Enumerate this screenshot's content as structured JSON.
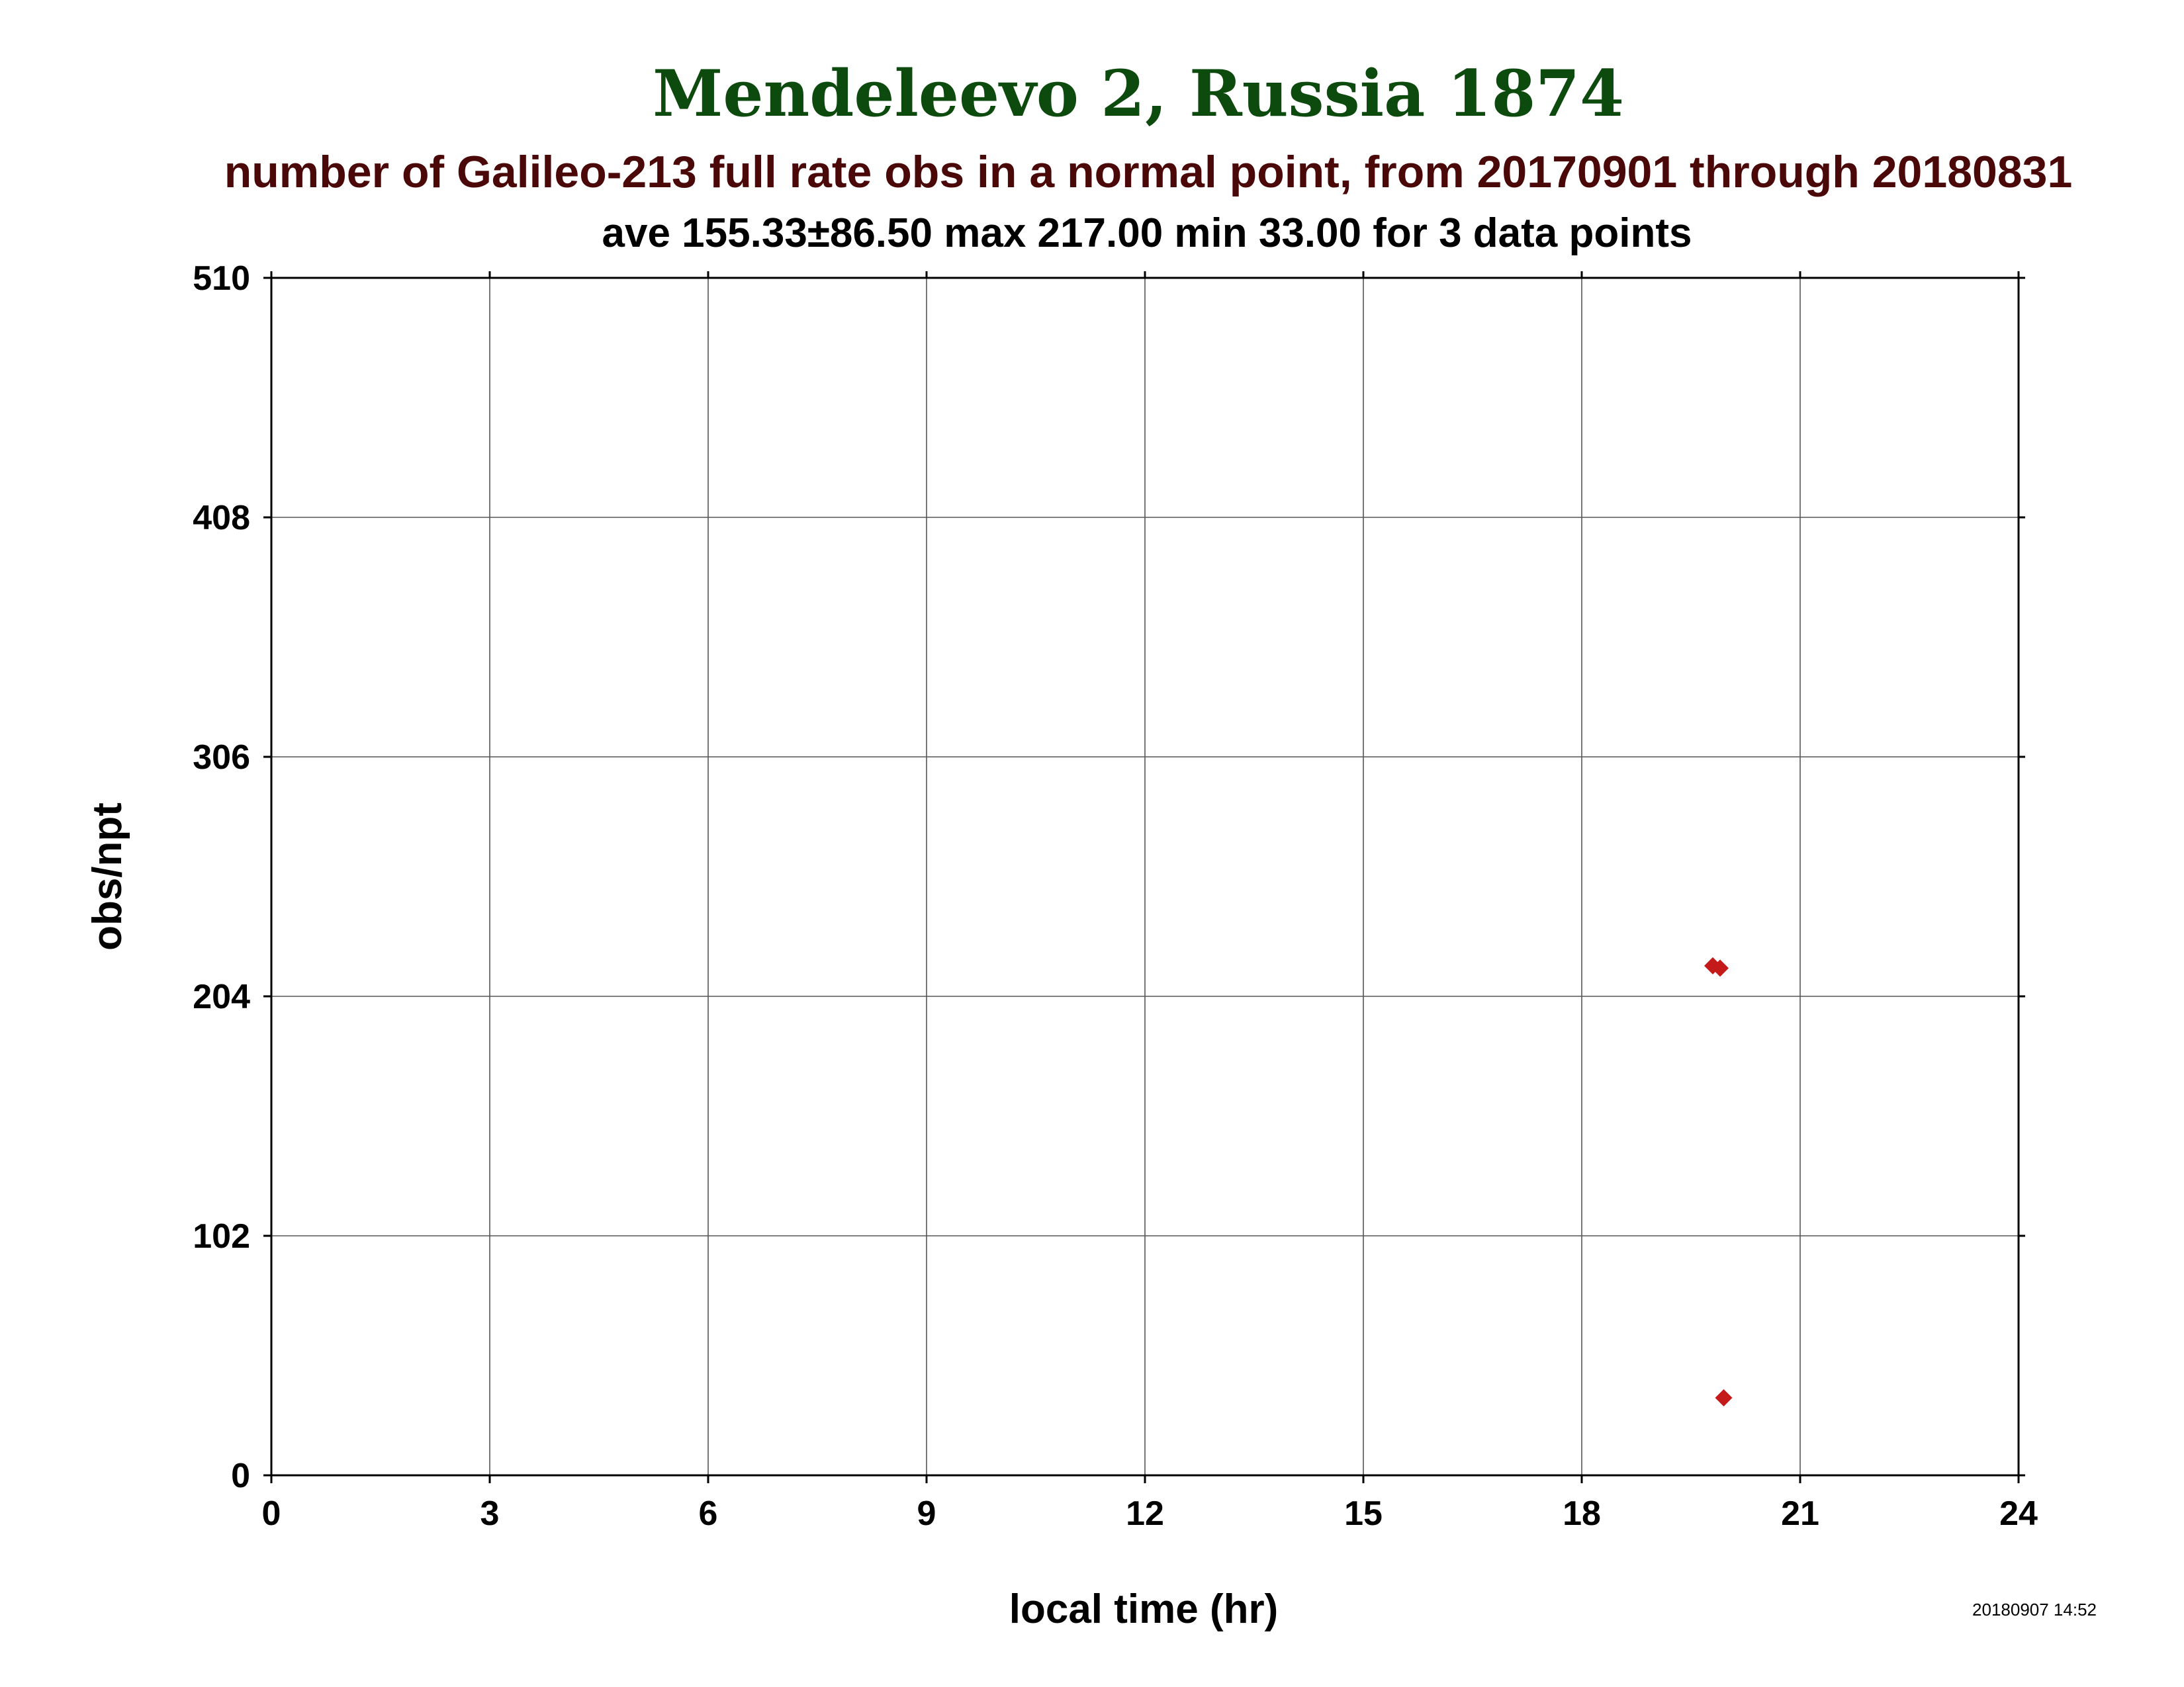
{
  "colors": {
    "title": "#0d4a0d",
    "subtitle": "#4a0808",
    "marker": "#c41a1a",
    "grid": "#555555"
  },
  "header": {
    "title": "Mendeleevo 2, Russia 1874",
    "subtitle": "number of Galileo-213 full rate obs in a normal point, from 20170901 through 20180831",
    "stats": "ave 155.33±86.50 max 217.00 min 33.00 for 3 data points"
  },
  "footer": {
    "timestamp": "20180907 14:52"
  },
  "chart_data": {
    "type": "scatter",
    "xlabel": "local time (hr)",
    "ylabel": "obs/npt",
    "xlim": [
      0,
      24
    ],
    "ylim": [
      0,
      510
    ],
    "xticks": [
      0,
      3,
      6,
      9,
      12,
      15,
      18,
      21,
      24
    ],
    "yticks": [
      0,
      102,
      204,
      306,
      408,
      510
    ],
    "grid": true,
    "marker": "diamond",
    "series": [
      {
        "points": [
          {
            "x": 19.8,
            "y": 217
          },
          {
            "x": 19.9,
            "y": 216
          },
          {
            "x": 19.95,
            "y": 33
          }
        ]
      }
    ]
  }
}
